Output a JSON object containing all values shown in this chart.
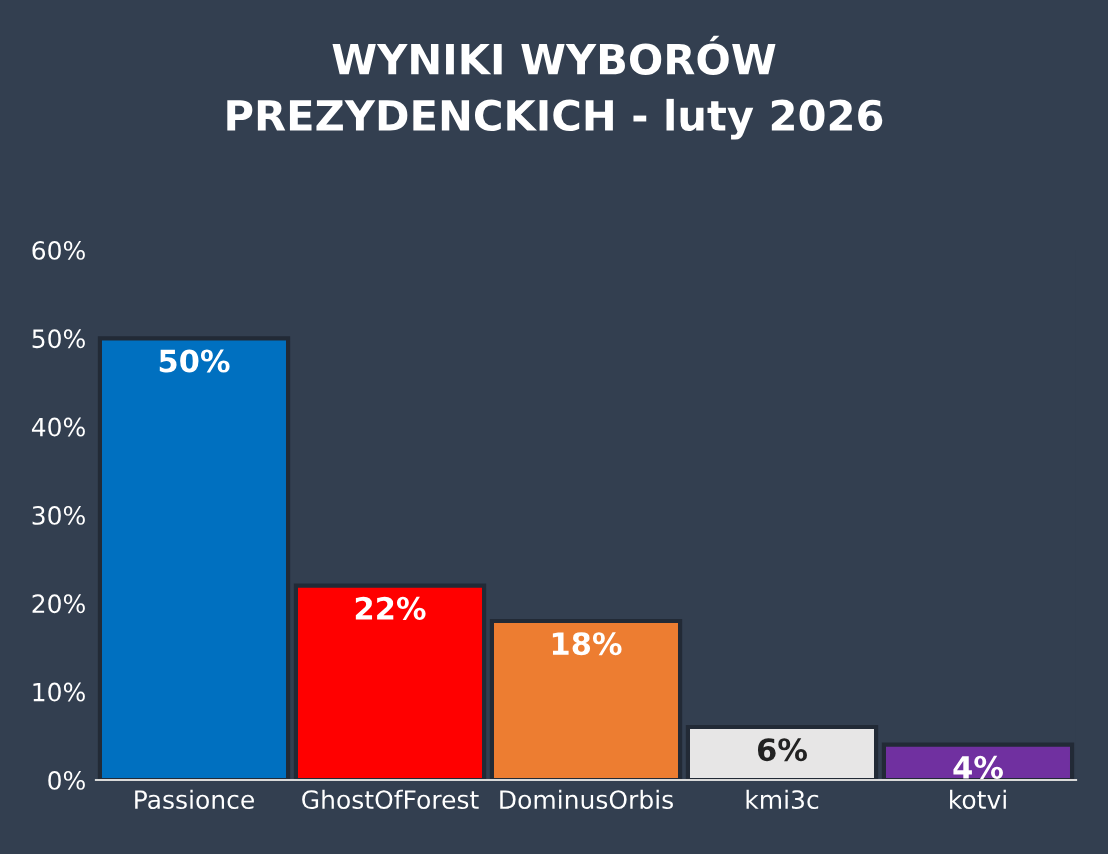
{
  "chart_data": {
    "type": "bar",
    "title": "WYNIKI WYBORÓW\nPREZYDENCKICH - luty 2026",
    "categories": [
      "Passionce",
      "GhostOfForest",
      "DominusOrbis",
      "kmi3c",
      "kotvi"
    ],
    "values": [
      50,
      22,
      18,
      6,
      4
    ],
    "colors": [
      "#0070c0",
      "#ff0000",
      "#ed7d31",
      "#e7e6e6",
      "#7030a0"
    ],
    "value_labels": [
      "50%",
      "22%",
      "18%",
      "6%",
      "4%"
    ],
    "ylim": [
      0,
      60
    ],
    "yticks": [
      {
        "value": 0,
        "label": "0%"
      },
      {
        "value": 10,
        "label": "10%"
      },
      {
        "value": 20,
        "label": "20%"
      },
      {
        "value": 30,
        "label": "30%"
      },
      {
        "value": 40,
        "label": "40%"
      },
      {
        "value": 50,
        "label": "50%"
      },
      {
        "value": 60,
        "label": "60%"
      }
    ],
    "grid": false,
    "legend": false
  }
}
